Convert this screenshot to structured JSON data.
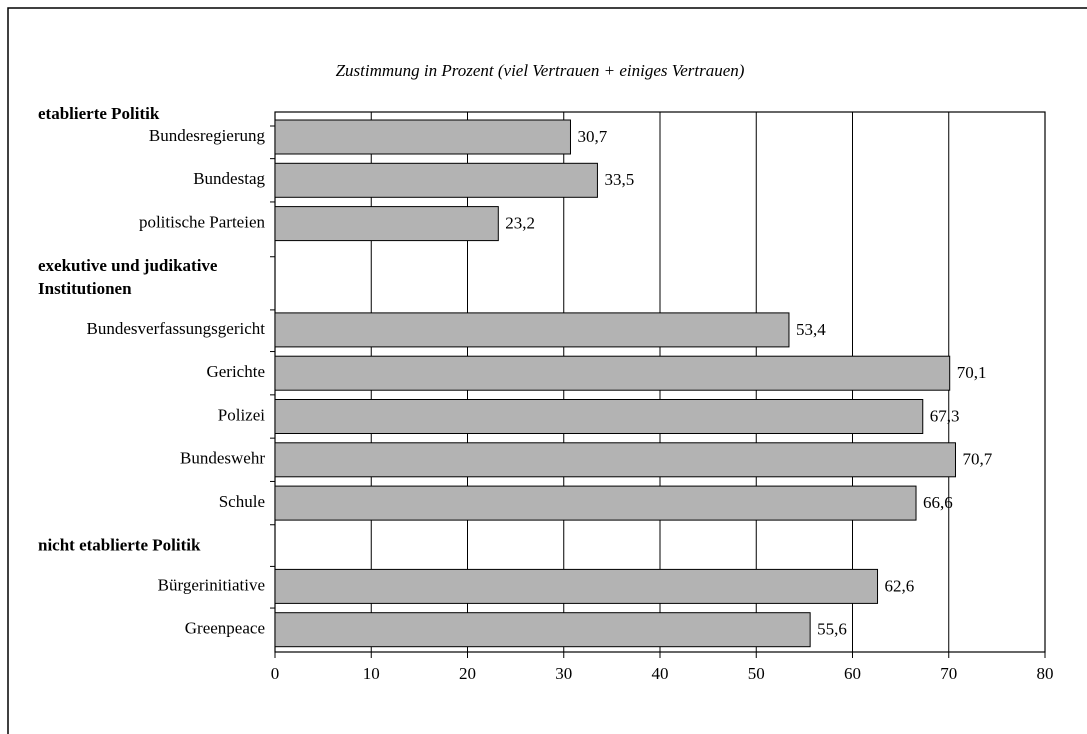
{
  "chart_data": {
    "type": "bar",
    "orientation": "horizontal",
    "title": "Zustimmung in Prozent (viel Vertrauen + einiges Vertrauen)",
    "color": "#b3b3b3",
    "grid": true,
    "xlim": [
      0,
      80
    ],
    "xticks": [
      0,
      10,
      20,
      30,
      40,
      50,
      60,
      70,
      80
    ],
    "groups": [
      {
        "name": "etablierte Politik",
        "categories": [
          "Bundesregierung",
          "Bundestag",
          "politische Parteien"
        ],
        "values": [
          30.7,
          33.5,
          23.2
        ],
        "value_labels": [
          "30,7",
          "33,5",
          "23,2"
        ]
      },
      {
        "name": "exekutive und judikative Institutionen",
        "categories": [
          "Bundesverfassungsgericht",
          "Gerichte",
          "Polizei",
          "Bundeswehr",
          "Schule"
        ],
        "values": [
          53.4,
          70.1,
          67.3,
          70.7,
          66.6
        ],
        "value_labels": [
          "53,4",
          "70,1",
          "67,3",
          "70,7",
          "66,6"
        ]
      },
      {
        "name": "nicht etablierte Politik",
        "categories": [
          "Bürgerinitiative",
          "Greenpeace"
        ],
        "values": [
          62.6,
          55.6
        ],
        "value_labels": [
          "62,6",
          "55,6"
        ]
      }
    ]
  }
}
